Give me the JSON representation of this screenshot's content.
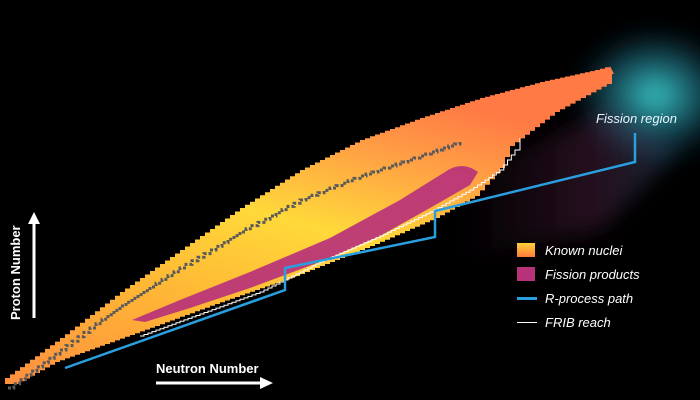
{
  "axes": {
    "x_label": "Neutron Number",
    "y_label": "Proton Number"
  },
  "regions": {
    "fission_region_label": "Fission region"
  },
  "legend": {
    "items": [
      {
        "key": "known",
        "label": "Known nuclei",
        "color": "#ffb347"
      },
      {
        "key": "fission",
        "label": "Fission products",
        "color": "#b8327a"
      },
      {
        "key": "rprocess",
        "label": "R-process path",
        "color": "#2a9fe0"
      },
      {
        "key": "frib",
        "label": "FRIB reach",
        "color": "#ffffff"
      }
    ]
  },
  "colors": {
    "background": "#000000",
    "known_gradient": [
      "#ff7a3c",
      "#ffd23a",
      "#ff8a4a"
    ],
    "fission_fill": "#b8327a",
    "rprocess_line": "#2a9fe0",
    "frib_line": "#ffffff",
    "fission_region_glow": "#2ec4c9",
    "stable_nuclei": "#555555"
  }
}
